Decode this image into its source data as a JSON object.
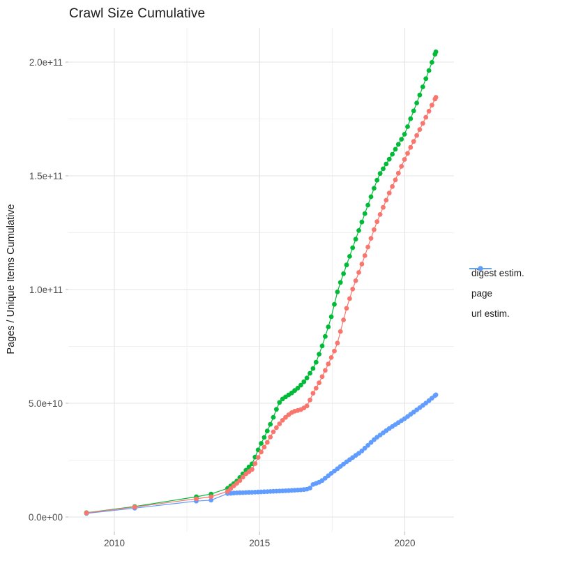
{
  "chart_data": {
    "type": "scatter",
    "title": "Crawl Size Cumulative",
    "ylabel": "Pages / Unique Items Cumulative",
    "xlabel": "",
    "grid": true,
    "legend_position": "right",
    "xlim_years": [
      2008.42,
      2021.69
    ],
    "ylim_e9": [
      -6.4,
      215
    ],
    "x_ticks": [
      {
        "label": "2010",
        "year": 2010
      },
      {
        "label": "2015",
        "year": 2015
      },
      {
        "label": "2020",
        "year": 2020
      }
    ],
    "x_minor_years": [
      2012.5,
      2017.5
    ],
    "y_ticks": [
      {
        "label": "0.0e+00",
        "value_e9": 0
      },
      {
        "label": "5.0e+10",
        "value_e9": 50
      },
      {
        "label": "1.0e+11",
        "value_e9": 100
      },
      {
        "label": "1.5e+11",
        "value_e9": 150
      },
      {
        "label": "2.0e+11",
        "value_e9": 200
      }
    ],
    "y_minor_e9": [
      25,
      75,
      125,
      175
    ],
    "units_note": "values in billions (1e9) of pages / unique items, cumulative",
    "dense_from_year": 2013.9,
    "dot_interval_years": 0.105,
    "legend": [
      {
        "label": "digest estim.",
        "color": "#F8766D"
      },
      {
        "label": "page",
        "color": "#00BA38"
      },
      {
        "label": "url estim.",
        "color": "#619CFF"
      }
    ],
    "series": [
      {
        "name": "url estim.",
        "color": "#619CFF",
        "points_year_value_e9": [
          [
            2009.04,
            1.6
          ],
          [
            2010.7,
            3.9
          ],
          [
            2012.82,
            7.0
          ],
          [
            2013.33,
            7.4
          ],
          [
            2013.9,
            10.3
          ],
          [
            2014.2,
            10.6
          ],
          [
            2015.0,
            11.0
          ],
          [
            2015.5,
            11.3
          ],
          [
            2016.0,
            11.6
          ],
          [
            2016.5,
            12.0
          ],
          [
            2016.72,
            12.4
          ],
          [
            2016.8,
            14.1
          ],
          [
            2017.1,
            15.5
          ],
          [
            2017.5,
            19.5
          ],
          [
            2018.0,
            24.3
          ],
          [
            2018.5,
            28.8
          ],
          [
            2019.0,
            34.7
          ],
          [
            2019.5,
            39.2
          ],
          [
            2020.0,
            43.3
          ],
          [
            2020.5,
            47.9
          ],
          [
            2020.8,
            50.8
          ],
          [
            2021.07,
            53.7
          ]
        ]
      },
      {
        "name": "page",
        "color": "#00BA38",
        "points_year_value_e9": [
          [
            2009.04,
            1.9
          ],
          [
            2010.7,
            4.6
          ],
          [
            2012.82,
            8.9
          ],
          [
            2013.33,
            10.1
          ],
          [
            2013.9,
            12.6
          ],
          [
            2014.2,
            15.6
          ],
          [
            2014.35,
            17.8
          ],
          [
            2014.5,
            20.2
          ],
          [
            2014.75,
            23.5
          ],
          [
            2015.0,
            31.0
          ],
          [
            2015.2,
            36.0
          ],
          [
            2015.45,
            43.0
          ],
          [
            2015.66,
            50.0
          ],
          [
            2015.8,
            52.0
          ],
          [
            2016.1,
            54.5
          ],
          [
            2016.35,
            57.0
          ],
          [
            2016.6,
            60.5
          ],
          [
            2016.9,
            66.5
          ],
          [
            2017.15,
            75.0
          ],
          [
            2017.45,
            87.0
          ],
          [
            2017.7,
            100.0
          ],
          [
            2018.0,
            111.0
          ],
          [
            2018.5,
            129.0
          ],
          [
            2018.94,
            144.5
          ],
          [
            2019.1,
            150.0
          ],
          [
            2019.5,
            158.0
          ],
          [
            2020.0,
            168.5
          ],
          [
            2020.5,
            185.0
          ],
          [
            2021.07,
            204.5
          ]
        ]
      },
      {
        "name": "digest estim.",
        "color": "#F8766D",
        "points_year_value_e9": [
          [
            2009.04,
            1.8
          ],
          [
            2010.7,
            4.4
          ],
          [
            2012.82,
            8.0
          ],
          [
            2013.33,
            8.9
          ],
          [
            2013.9,
            11.3
          ],
          [
            2014.2,
            14.7
          ],
          [
            2014.35,
            16.3
          ],
          [
            2014.5,
            18.7
          ],
          [
            2014.75,
            21.0
          ],
          [
            2015.0,
            27.5
          ],
          [
            2015.25,
            32.5
          ],
          [
            2015.5,
            38.0
          ],
          [
            2015.75,
            42.0
          ],
          [
            2015.95,
            44.5
          ],
          [
            2016.15,
            46.3
          ],
          [
            2016.45,
            47.3
          ],
          [
            2016.65,
            49.0
          ],
          [
            2016.86,
            55.0
          ],
          [
            2017.0,
            57.7
          ],
          [
            2017.3,
            65.5
          ],
          [
            2017.65,
            75.0
          ],
          [
            2018.0,
            92.0
          ],
          [
            2018.2,
            100.0
          ],
          [
            2018.6,
            114.0
          ],
          [
            2019.0,
            128.5
          ],
          [
            2019.45,
            142.0
          ],
          [
            2019.74,
            150.0
          ],
          [
            2020.0,
            157.5
          ],
          [
            2020.5,
            170.0
          ],
          [
            2021.07,
            184.5
          ]
        ]
      }
    ],
    "style": {
      "grid_major_color": "#E3E3E3",
      "grid_minor_color": "#F0F0F0",
      "tick_mark_color": "#C4C4C4",
      "background": "#FFFFFF",
      "dot_radius": 3.4
    }
  }
}
